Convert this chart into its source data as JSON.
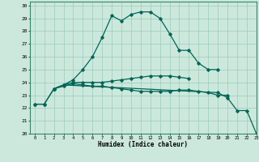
{
  "xlabel": "Humidex (Indice chaleur)",
  "bg_color": "#cce8dd",
  "grid_color": "#99ccbb",
  "line_color": "#006655",
  "xlim": [
    -0.5,
    23
  ],
  "ylim": [
    20,
    30.3
  ],
  "xticks": [
    0,
    1,
    2,
    3,
    4,
    5,
    6,
    7,
    8,
    9,
    10,
    11,
    12,
    13,
    14,
    15,
    16,
    17,
    18,
    19,
    20,
    21,
    22,
    23
  ],
  "yticks": [
    20,
    21,
    22,
    23,
    24,
    25,
    26,
    27,
    28,
    29,
    30
  ],
  "series": [
    {
      "x": [
        0,
        1,
        2,
        3,
        4,
        5,
        6,
        7,
        8,
        9,
        10,
        11,
        12,
        13,
        14,
        15,
        16,
        17,
        18,
        19
      ],
      "y": [
        22.3,
        22.3,
        23.5,
        23.8,
        24.2,
        25.0,
        26.0,
        27.5,
        29.2,
        28.8,
        29.3,
        29.5,
        29.5,
        29.0,
        27.8,
        26.5,
        26.5,
        25.5,
        25.0,
        25.0
      ]
    },
    {
      "x": [
        2,
        3,
        4,
        5,
        6,
        7,
        8,
        9,
        10,
        11,
        12,
        13,
        14,
        15,
        16
      ],
      "y": [
        23.5,
        23.8,
        24.0,
        24.0,
        24.0,
        24.0,
        24.1,
        24.2,
        24.3,
        24.4,
        24.5,
        24.5,
        24.5,
        24.4,
        24.3
      ]
    },
    {
      "x": [
        0,
        1,
        2,
        3,
        4,
        5,
        6,
        7,
        8,
        9,
        10,
        11,
        12,
        13,
        14,
        15,
        16,
        17,
        18,
        19,
        20
      ],
      "y": [
        22.3,
        22.3,
        23.5,
        23.7,
        23.9,
        23.8,
        23.7,
        23.7,
        23.6,
        23.5,
        23.4,
        23.3,
        23.3,
        23.3,
        23.3,
        23.4,
        23.4,
        23.3,
        23.2,
        23.0,
        23.0
      ]
    },
    {
      "x": [
        2,
        3,
        19,
        20,
        21,
        22,
        23
      ],
      "y": [
        23.5,
        23.8,
        23.2,
        22.8,
        21.8,
        21.8,
        20.0
      ]
    }
  ]
}
